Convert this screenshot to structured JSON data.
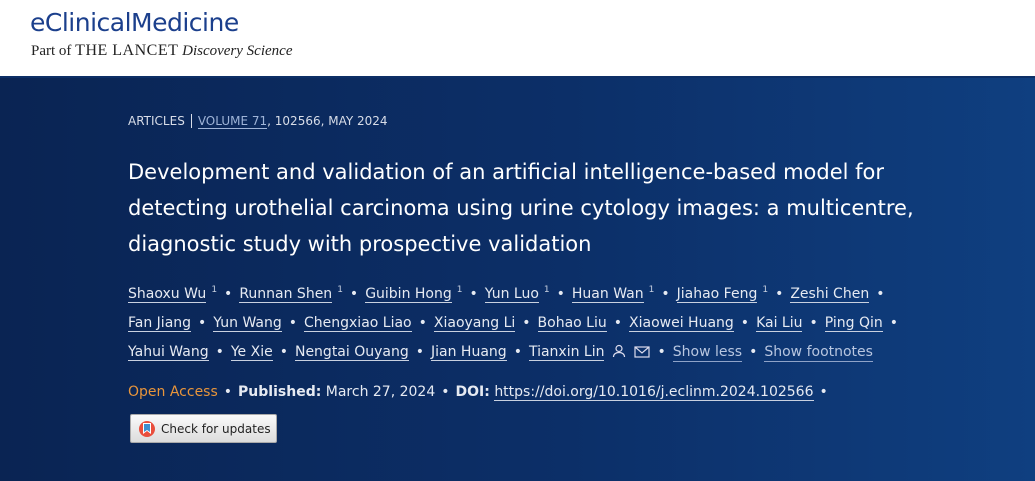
{
  "header": {
    "journal": "eClinicalMedicine",
    "part_of": "Part of",
    "lancet": "THE LANCET",
    "discovery": "Discovery Science"
  },
  "article": {
    "section": "ARTICLES",
    "volume": "VOLUME 71",
    "issue_info": ", 102566, MAY 2024",
    "title": "Development and validation of an artificial intelligence-based model for detecting urothelial carcinoma using urine cytology images: a multicentre, diagnostic study with prospective validation",
    "separator": "•",
    "authors": [
      {
        "name": "Shaoxu Wu",
        "sup": "1"
      },
      {
        "name": "Runnan Shen",
        "sup": "1"
      },
      {
        "name": "Guibin Hong",
        "sup": "1"
      },
      {
        "name": "Yun Luo",
        "sup": "1"
      },
      {
        "name": "Huan Wan",
        "sup": "1"
      },
      {
        "name": "Jiahao Feng",
        "sup": "1"
      },
      {
        "name": "Zeshi Chen"
      },
      {
        "name": "Fan Jiang"
      },
      {
        "name": "Yun Wang"
      },
      {
        "name": "Chengxiao Liao"
      },
      {
        "name": "Xiaoyang Li"
      },
      {
        "name": "Bohao Liu"
      },
      {
        "name": "Xiaowei Huang"
      },
      {
        "name": "Kai Liu"
      },
      {
        "name": "Ping Qin"
      },
      {
        "name": "Yahui Wang"
      },
      {
        "name": "Ye Xie"
      },
      {
        "name": "Nengtai Ouyang"
      },
      {
        "name": "Jian Huang"
      },
      {
        "name": "Tianxin Lin",
        "contact": true
      }
    ],
    "show_less": "Show less",
    "show_footnotes": "Show footnotes",
    "open_access": "Open Access",
    "published_label": "Published:",
    "published_date": "March 27, 2024",
    "doi_label": "DOI:",
    "doi": "https://doi.org/10.1016/j.eclinm.2024.102566",
    "check_updates": "Check for updates"
  }
}
